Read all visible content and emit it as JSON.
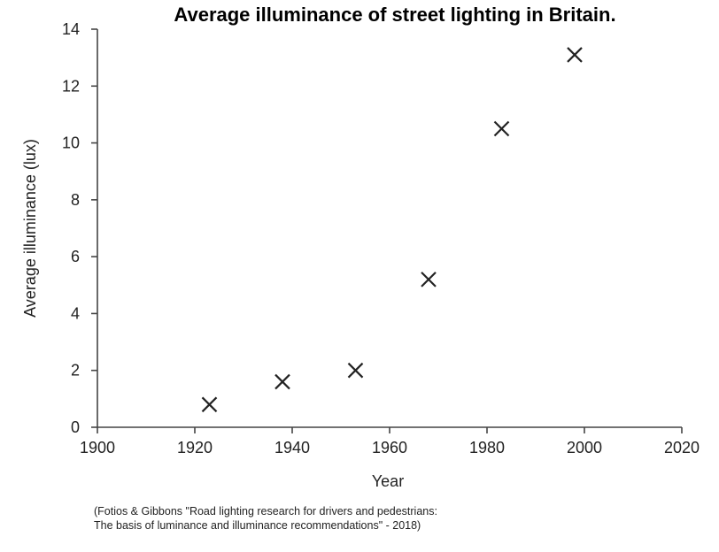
{
  "chart_data": {
    "type": "scatter",
    "title": "Average illuminance of street lighting in Britain.",
    "xlabel": "Year",
    "ylabel": "Average illuminance (lux)",
    "xlim": [
      1900,
      2020
    ],
    "ylim": [
      0,
      14
    ],
    "xticks": [
      1900,
      1920,
      1940,
      1960,
      1980,
      2000,
      2020
    ],
    "yticks": [
      0,
      2,
      4,
      6,
      8,
      10,
      12,
      14
    ],
    "grid": false,
    "marker": "x",
    "points": [
      {
        "x": 1923,
        "y": 0.8
      },
      {
        "x": 1938,
        "y": 1.6
      },
      {
        "x": 1953,
        "y": 2.0
      },
      {
        "x": 1968,
        "y": 5.2
      },
      {
        "x": 1983,
        "y": 10.5
      },
      {
        "x": 1998,
        "y": 13.1
      }
    ]
  },
  "source_note": {
    "line1": "(Fotios & Gibbons \"Road lighting research for drivers and pedestrians:",
    "line2": "The basis of luminance and illuminance recommendations\" - 2018)"
  }
}
